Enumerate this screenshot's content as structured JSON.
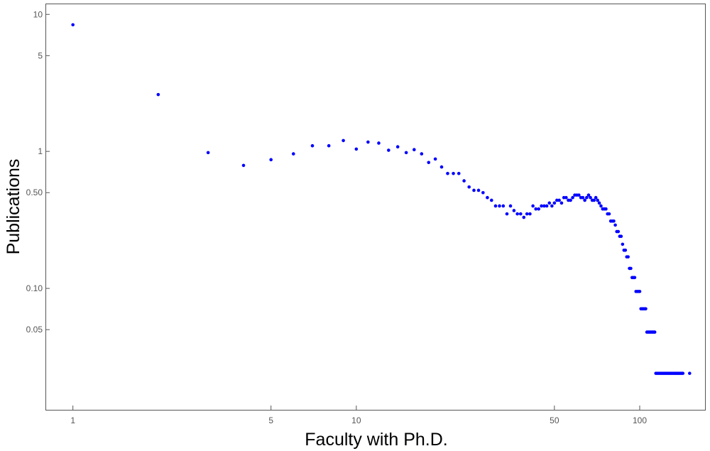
{
  "chart_data": {
    "type": "scatter",
    "title": "",
    "xlabel": "Faculty with Ph.D.",
    "ylabel": "Publications",
    "xscale": "log",
    "yscale": "log",
    "xlim": [
      0.8,
      170
    ],
    "ylim": [
      0.013,
      12
    ],
    "grid": false,
    "marker_color": "#0000ff",
    "x_ticks": [
      {
        "value": 1,
        "label": "1"
      },
      {
        "value": 5,
        "label": "5"
      },
      {
        "value": 10,
        "label": "10"
      },
      {
        "value": 50,
        "label": "50"
      },
      {
        "value": 100,
        "label": "100"
      }
    ],
    "y_ticks": [
      {
        "value": 0.05,
        "label": "0.05"
      },
      {
        "value": 0.1,
        "label": "0.10"
      },
      {
        "value": 0.5,
        "label": "0.50"
      },
      {
        "value": 1,
        "label": "1"
      },
      {
        "value": 5,
        "label": "5"
      },
      {
        "value": 10,
        "label": "10"
      }
    ],
    "points": [
      [
        1,
        8.4
      ],
      [
        2,
        2.6
      ],
      [
        3,
        0.98
      ],
      [
        4,
        0.79
      ],
      [
        5,
        0.87
      ],
      [
        6,
        0.96
      ],
      [
        7,
        1.1
      ],
      [
        8,
        1.1
      ],
      [
        9,
        1.2
      ],
      [
        10,
        1.04
      ],
      [
        11,
        1.17
      ],
      [
        12,
        1.15
      ],
      [
        13,
        1.02
      ],
      [
        14,
        1.08
      ],
      [
        15,
        0.98
      ],
      [
        16,
        1.03
      ],
      [
        17,
        0.96
      ],
      [
        18,
        0.83
      ],
      [
        19,
        0.88
      ],
      [
        20,
        0.77
      ],
      [
        21,
        0.69
      ],
      [
        22,
        0.69
      ],
      [
        23,
        0.69
      ],
      [
        24,
        0.61
      ],
      [
        25,
        0.55
      ],
      [
        26,
        0.52
      ],
      [
        27,
        0.52
      ],
      [
        28,
        0.5
      ],
      [
        29,
        0.46
      ],
      [
        30,
        0.44
      ],
      [
        31,
        0.4
      ],
      [
        32,
        0.4
      ],
      [
        33,
        0.4
      ],
      [
        34,
        0.35
      ],
      [
        35,
        0.4
      ],
      [
        36,
        0.37
      ],
      [
        37,
        0.35
      ],
      [
        38,
        0.35
      ],
      [
        39,
        0.33
      ],
      [
        40,
        0.35
      ],
      [
        41,
        0.35
      ],
      [
        42,
        0.4
      ],
      [
        43,
        0.38
      ],
      [
        44,
        0.38
      ],
      [
        45,
        0.4
      ],
      [
        46,
        0.4
      ],
      [
        47,
        0.4
      ],
      [
        48,
        0.42
      ],
      [
        49,
        0.4
      ],
      [
        50,
        0.42
      ],
      [
        51,
        0.44
      ],
      [
        52,
        0.44
      ],
      [
        53,
        0.42
      ],
      [
        54,
        0.46
      ],
      [
        55,
        0.46
      ],
      [
        56,
        0.44
      ],
      [
        57,
        0.44
      ],
      [
        58,
        0.46
      ],
      [
        59,
        0.48
      ],
      [
        60,
        0.48
      ],
      [
        61,
        0.48
      ],
      [
        62,
        0.46
      ],
      [
        63,
        0.46
      ],
      [
        64,
        0.44
      ],
      [
        65,
        0.46
      ],
      [
        66,
        0.48
      ],
      [
        67,
        0.46
      ],
      [
        68,
        0.44
      ],
      [
        69,
        0.44
      ],
      [
        70,
        0.46
      ],
      [
        71,
        0.44
      ],
      [
        72,
        0.42
      ],
      [
        73,
        0.4
      ],
      [
        74,
        0.38
      ],
      [
        75,
        0.38
      ],
      [
        76,
        0.38
      ],
      [
        77,
        0.35
      ],
      [
        78,
        0.35
      ],
      [
        79,
        0.31
      ],
      [
        80,
        0.31
      ],
      [
        81,
        0.31
      ],
      [
        82,
        0.29
      ],
      [
        83,
        0.26
      ],
      [
        84,
        0.26
      ],
      [
        85,
        0.24
      ],
      [
        86,
        0.24
      ],
      [
        87,
        0.21
      ],
      [
        88,
        0.19
      ],
      [
        89,
        0.19
      ],
      [
        90,
        0.17
      ],
      [
        91,
        0.17
      ],
      [
        92,
        0.14
      ],
      [
        93,
        0.14
      ],
      [
        94,
        0.12
      ],
      [
        95,
        0.12
      ],
      [
        96,
        0.12
      ],
      [
        97,
        0.095
      ],
      [
        98,
        0.095
      ],
      [
        99,
        0.095
      ],
      [
        100,
        0.095
      ],
      [
        101,
        0.071
      ],
      [
        102,
        0.071
      ],
      [
        103,
        0.071
      ],
      [
        104,
        0.071
      ],
      [
        105,
        0.071
      ],
      [
        106,
        0.048
      ],
      [
        107,
        0.048
      ],
      [
        108,
        0.048
      ],
      [
        109,
        0.048
      ],
      [
        110,
        0.048
      ],
      [
        111,
        0.048
      ],
      [
        112,
        0.048
      ],
      [
        113,
        0.048
      ],
      [
        114,
        0.024
      ],
      [
        115,
        0.024
      ],
      [
        116,
        0.024
      ],
      [
        117,
        0.024
      ],
      [
        118,
        0.024
      ],
      [
        119,
        0.024
      ],
      [
        120,
        0.024
      ],
      [
        121,
        0.024
      ],
      [
        122,
        0.024
      ],
      [
        123,
        0.024
      ],
      [
        124,
        0.024
      ],
      [
        125,
        0.024
      ],
      [
        126,
        0.024
      ],
      [
        127,
        0.024
      ],
      [
        128,
        0.024
      ],
      [
        129,
        0.024
      ],
      [
        130,
        0.024
      ],
      [
        131,
        0.024
      ],
      [
        132,
        0.024
      ],
      [
        133,
        0.024
      ],
      [
        134,
        0.024
      ],
      [
        135,
        0.024
      ],
      [
        136,
        0.024
      ],
      [
        137,
        0.024
      ],
      [
        138,
        0.024
      ],
      [
        139,
        0.024
      ],
      [
        140,
        0.024
      ],
      [
        141,
        0.024
      ],
      [
        142,
        0.024
      ],
      [
        150,
        0.024
      ]
    ]
  }
}
